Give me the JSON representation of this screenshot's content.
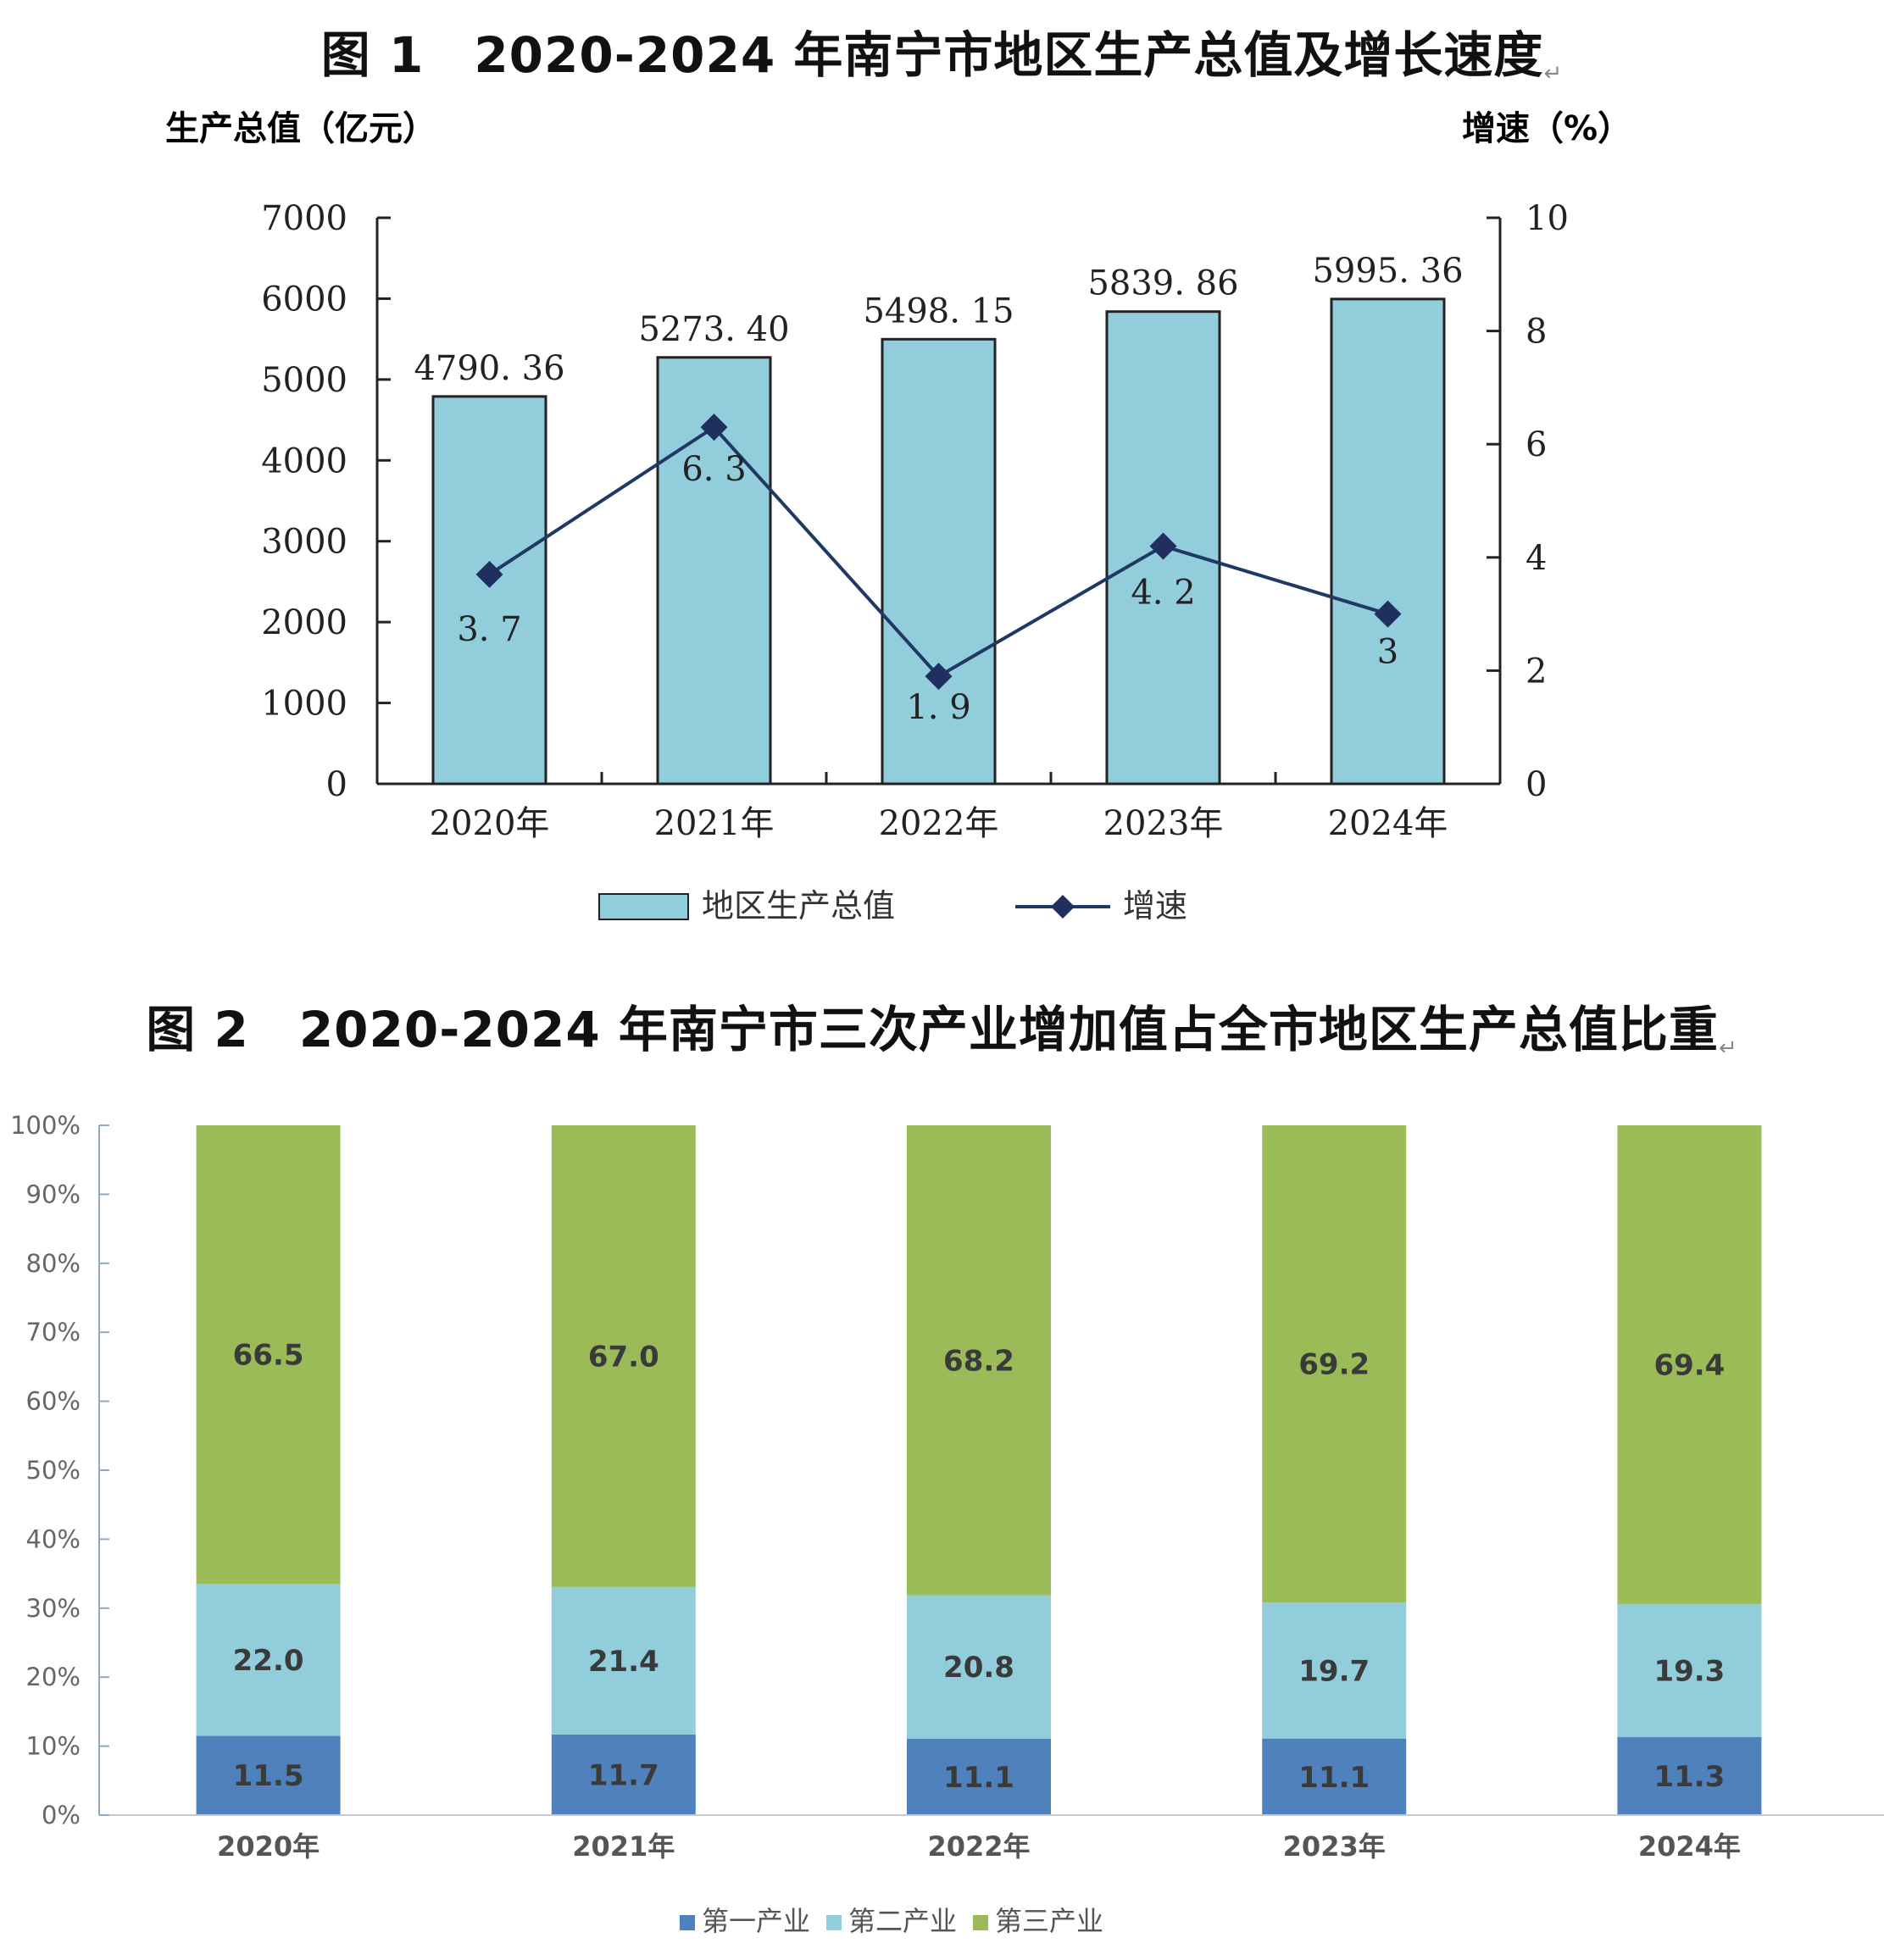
{
  "figure1": {
    "title": "图 1　2020-2024 年南宁市地区生产总值及增长速度",
    "left_axis_label": "生产总值（亿元）",
    "right_axis_label": "增速（%）",
    "legend": {
      "bar": "地区生产总值",
      "line": "增速"
    },
    "colors": {
      "bar": "#92CDDC",
      "line": "#1F3864",
      "marker": "#1F3060"
    }
  },
  "figure2": {
    "title": "图 2　2020-2024 年南宁市三次产业增加值占全市地区生产总值比重",
    "legend": [
      "第一产业",
      "第二产业",
      "第三产业"
    ],
    "colors": {
      "primary": "#4F81BD",
      "secondary": "#92CDDC",
      "tertiary": "#9BBB59"
    }
  },
  "chart_data": [
    {
      "type": "bar",
      "title": "图 1　2020-2024 年南宁市地区生产总值及增长速度",
      "categories": [
        "2020年",
        "2021年",
        "2022年",
        "2023年",
        "2024年"
      ],
      "ylabel": "生产总值（亿元）",
      "y2label": "增速（%）",
      "ylim": [
        0,
        7000
      ],
      "y2lim": [
        0,
        10
      ],
      "yticks": [
        "0",
        "1000",
        "2000",
        "3000",
        "4000",
        "5000",
        "6000",
        "7000"
      ],
      "y2ticks": [
        "0",
        "2",
        "4",
        "6",
        "8",
        "10"
      ],
      "series": [
        {
          "name": "地区生产总值",
          "type": "bar",
          "axis": "left",
          "values": [
            4790.36,
            5273.4,
            5498.15,
            5839.86,
            5995.36
          ],
          "labels": [
            "4790. 36",
            "5273. 40",
            "5498. 15",
            "5839. 86",
            "5995. 36"
          ]
        },
        {
          "name": "增速",
          "type": "line",
          "axis": "right",
          "values": [
            3.7,
            6.3,
            1.9,
            4.2,
            3
          ],
          "labels": [
            "3. 7",
            "6. 3",
            "1. 9",
            "4. 2",
            "3"
          ]
        }
      ],
      "legend": "bottom",
      "grid": false
    },
    {
      "type": "bar",
      "stacked": true,
      "title": "图 2　2020-2024 年南宁市三次产业增加值占全市地区生产总值比重",
      "categories": [
        "2020年",
        "2021年",
        "2022年",
        "2023年",
        "2024年"
      ],
      "ylim": [
        0,
        100
      ],
      "yticks": [
        "0%",
        "10%",
        "20%",
        "30%",
        "40%",
        "50%",
        "60%",
        "70%",
        "80%",
        "90%",
        "100%"
      ],
      "series": [
        {
          "name": "第一产业",
          "values": [
            11.5,
            11.7,
            11.1,
            11.1,
            11.3
          ],
          "labels": [
            "11.5",
            "11.7",
            "11.1",
            "11.1",
            "11.3"
          ]
        },
        {
          "name": "第二产业",
          "values": [
            22.0,
            21.4,
            20.8,
            19.7,
            19.3
          ],
          "labels": [
            "22.0",
            "21.4",
            "20.8",
            "19.7",
            "19.3"
          ]
        },
        {
          "name": "第三产业",
          "values": [
            66.5,
            67.0,
            68.2,
            69.2,
            69.4
          ],
          "labels": [
            "66.5",
            "67.0",
            "68.2",
            "69.2",
            "69.4"
          ]
        }
      ],
      "legend": "bottom",
      "grid": false
    }
  ]
}
